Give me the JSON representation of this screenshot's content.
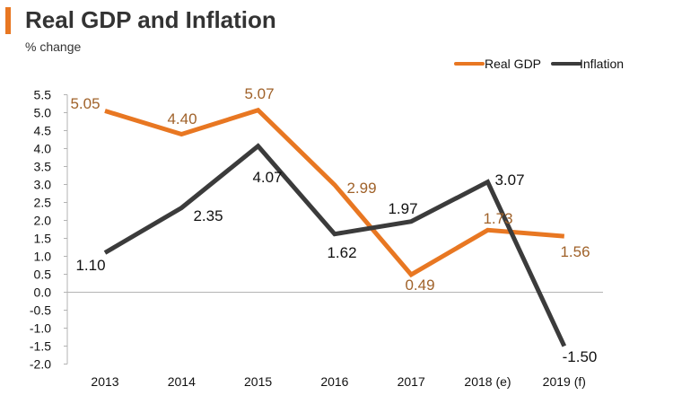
{
  "colors": {
    "accent": "#e87722",
    "gdp": "#e87722",
    "inflation": "#3b3b3b",
    "gdp_label": "#a0622a",
    "inflation_label": "#111111",
    "axis": "#b3b3b3"
  },
  "chart_data": {
    "type": "line",
    "title": "Real GDP and Inflation",
    "subtitle": "% change",
    "categories": [
      "2013",
      "2014",
      "2015",
      "2016",
      "2017",
      "2018 (e)",
      "2019 (f)"
    ],
    "ylim": [
      -2.0,
      5.5
    ],
    "yticks": [
      5.5,
      5.0,
      4.5,
      4.0,
      3.5,
      3.0,
      2.5,
      2.0,
      1.5,
      1.0,
      0.5,
      0.0,
      -0.5,
      -1.0,
      -1.5,
      -2.0
    ],
    "ytick_labels": [
      "5.5",
      "5.0",
      "4.5",
      "4.0",
      "3.5",
      "3.0",
      "2.5",
      "2.0",
      "1.5",
      "1.0",
      "0.5",
      "0.0",
      "-0.5",
      "-1.0",
      "-1.5",
      "-2.0"
    ],
    "legend_position": "top-right",
    "series": [
      {
        "name": "Real GDP",
        "values": [
          5.05,
          4.4,
          5.07,
          2.99,
          0.49,
          1.73,
          1.56
        ],
        "labels": [
          "5.05",
          "4.40",
          "5.07",
          "2.99",
          "0.49",
          "1.73",
          "1.56"
        ]
      },
      {
        "name": "Inflation",
        "values": [
          1.1,
          2.35,
          4.07,
          1.62,
          1.97,
          3.07,
          -1.5
        ],
        "labels": [
          "1.10",
          "2.35",
          "4.07",
          "1.62",
          "1.97",
          "3.07",
          "-1.50"
        ]
      }
    ]
  }
}
